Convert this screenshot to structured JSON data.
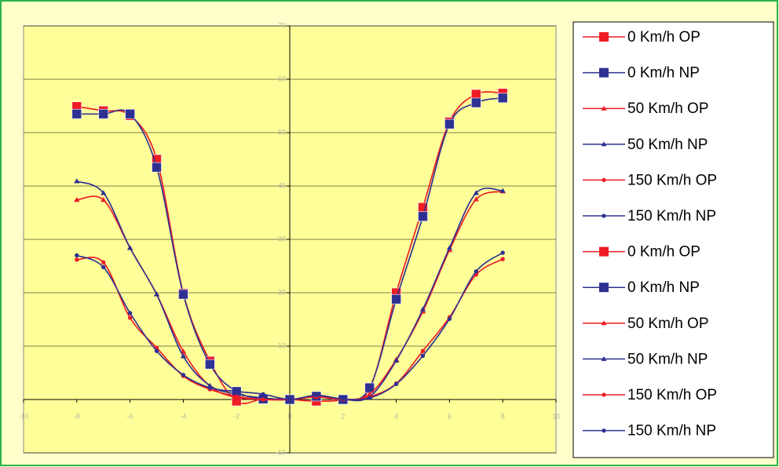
{
  "chart_data": {
    "type": "line",
    "x": [
      -8,
      -7,
      -6,
      -5,
      -4,
      -3,
      -2,
      -1,
      0,
      1,
      2,
      3,
      4,
      5,
      6,
      7,
      8
    ],
    "xlim": [
      -10,
      10
    ],
    "xticks": [
      -10,
      -8,
      -6,
      -4,
      -2,
      0,
      2,
      4,
      6,
      8,
      10
    ],
    "ylim": [
      -10,
      70
    ],
    "yticks": [
      -10,
      0,
      10,
      20,
      30,
      40,
      50,
      60,
      70
    ],
    "grid": true,
    "series": [
      {
        "name": "0 Km/h OP",
        "color": "#ee1c25",
        "marker": "square",
        "values": [
          54.9,
          54.1,
          53.2,
          45,
          19.9,
          7.2,
          -0.3,
          0.1,
          0,
          -0.3,
          0,
          2,
          20,
          36,
          52,
          57.2,
          57.4
        ]
      },
      {
        "name": "0 Km/h NP",
        "color": "#2e3192",
        "marker": "square",
        "values": [
          53.5,
          53.5,
          53.5,
          43.5,
          19.7,
          6.6,
          1.5,
          0.1,
          0,
          0.6,
          0,
          2.2,
          18.8,
          34.3,
          51.6,
          55.6,
          56.5
        ]
      },
      {
        "name": "50 Km/h OP",
        "color": "#ee1c25",
        "marker": "triangle",
        "values": [
          37.4,
          37.4,
          28.4,
          19.7,
          9,
          2.5,
          0.4,
          0.1,
          0,
          0.5,
          0,
          1,
          7.5,
          16.5,
          28,
          37.5,
          39
        ]
      },
      {
        "name": "50 Km/h NP",
        "color": "#2e3192",
        "marker": "triangle",
        "values": [
          40.9,
          38.7,
          28.4,
          19.7,
          8.1,
          2.6,
          1,
          0.3,
          0,
          0.6,
          0,
          0.5,
          7.3,
          16.9,
          28.4,
          38.7,
          39.1
        ]
      },
      {
        "name": "150 Km/h OP",
        "color": "#ee1c25",
        "marker": "circle",
        "values": [
          26.2,
          25.7,
          15.3,
          9.7,
          4.4,
          1.9,
          0.6,
          0,
          0,
          0.5,
          0,
          0.5,
          3,
          9.1,
          15.4,
          23.4,
          26.3
        ]
      },
      {
        "name": "150 Km/h NP",
        "color": "#2e3192",
        "marker": "circle",
        "values": [
          27,
          24.8,
          16.2,
          9.1,
          4.6,
          2.2,
          1.5,
          1,
          0,
          0.8,
          0.1,
          0.3,
          2.9,
          8.2,
          15.1,
          24,
          27.5
        ]
      },
      {
        "name": "0 Km/h OP",
        "color": "#ee1c25",
        "marker": "square",
        "values": [
          54.9,
          54.1,
          53.2,
          45,
          19.9,
          7.2,
          -0.3,
          0.1,
          0,
          -0.3,
          0,
          2,
          20,
          36,
          52,
          57.2,
          57.4
        ]
      },
      {
        "name": "0 Km/h NP",
        "color": "#2e3192",
        "marker": "square",
        "values": [
          53.5,
          53.5,
          53.5,
          43.5,
          19.7,
          6.6,
          1.5,
          0.1,
          0,
          0.6,
          0,
          2.2,
          18.8,
          34.3,
          51.6,
          55.6,
          56.5
        ]
      },
      {
        "name": "50 Km/h OP",
        "color": "#ee1c25",
        "marker": "triangle",
        "values": [
          37.4,
          37.4,
          28.4,
          19.7,
          9,
          2.5,
          0.4,
          0.1,
          0,
          0.5,
          0,
          1,
          7.5,
          16.5,
          28,
          37.5,
          39
        ]
      },
      {
        "name": "50 Km/h NP",
        "color": "#2e3192",
        "marker": "triangle",
        "values": [
          40.9,
          38.7,
          28.4,
          19.7,
          8.1,
          2.6,
          1,
          0.3,
          0,
          0.6,
          0,
          0.5,
          7.3,
          16.9,
          28.4,
          38.7,
          39.1
        ]
      },
      {
        "name": "150 Km/h OP",
        "color": "#ee1c25",
        "marker": "circle",
        "values": [
          26.2,
          25.7,
          15.3,
          9.7,
          4.4,
          1.9,
          0.6,
          0,
          0,
          0.5,
          0,
          0.5,
          3,
          9.1,
          15.4,
          23.4,
          26.3
        ]
      },
      {
        "name": "150 Km/h NP",
        "color": "#2e3192",
        "marker": "circle",
        "values": [
          27,
          24.8,
          16.2,
          9.1,
          4.6,
          2.2,
          1.5,
          1,
          0,
          0.8,
          0.1,
          0.3,
          2.9,
          8.2,
          15.1,
          24,
          27.5
        ]
      }
    ]
  }
}
